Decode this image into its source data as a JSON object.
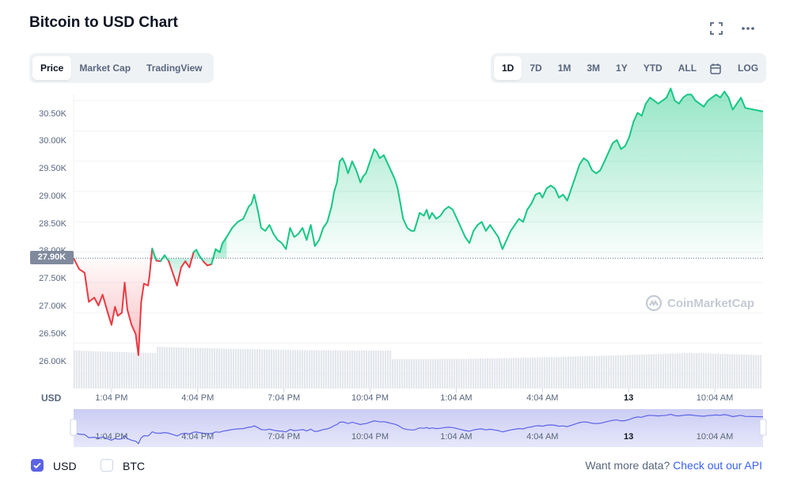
{
  "header": {
    "title": "Bitcoin to USD Chart"
  },
  "icons": {
    "fullscreen": "fullscreen-icon",
    "more": "more-icon",
    "calendar": "calendar-icon",
    "logo": "coinmarketcap-logo"
  },
  "chart_tabs": [
    {
      "label": "Price",
      "active": true
    },
    {
      "label": "Market Cap",
      "active": false
    },
    {
      "label": "TradingView",
      "active": false
    }
  ],
  "ranges": [
    {
      "label": "1D",
      "active": true
    },
    {
      "label": "7D",
      "active": false
    },
    {
      "label": "1M",
      "active": false
    },
    {
      "label": "3M",
      "active": false
    },
    {
      "label": "1Y",
      "active": false
    },
    {
      "label": "YTD",
      "active": false
    },
    {
      "label": "ALL",
      "active": false
    }
  ],
  "log_label": "LOG",
  "watermark": "CoinMarketCap",
  "footer": {
    "usd_label": "USD",
    "btc_label": "BTC",
    "usd_checked": true,
    "btc_checked": false,
    "more_text": "Want more data?",
    "api_link": "Check out our API"
  },
  "colors": {
    "up": "#16c784",
    "down": "#ea3943",
    "navigator": "#6a6fdc",
    "accent": "#3861fb"
  },
  "chart_data": {
    "type": "line",
    "currency_label": "USD",
    "reference_value_label": "27.90K",
    "reference_value": 27900,
    "ylim": [
      25750,
      30750
    ],
    "yticks": [
      "26.00K",
      "26.50K",
      "27.00K",
      "27.50K",
      "28.00K",
      "28.50K",
      "29.00K",
      "29.50K",
      "30.00K",
      "30.50K"
    ],
    "ytick_values": [
      26000,
      26500,
      27000,
      27500,
      28000,
      28500,
      29000,
      29500,
      30000,
      30500
    ],
    "xticks": [
      {
        "label": "1:04 PM",
        "t": 0.055,
        "bold": false
      },
      {
        "label": "4:04 PM",
        "t": 0.18,
        "bold": false
      },
      {
        "label": "7:04 PM",
        "t": 0.305,
        "bold": false
      },
      {
        "label": "10:04 PM",
        "t": 0.43,
        "bold": false
      },
      {
        "label": "1:04 AM",
        "t": 0.555,
        "bold": false
      },
      {
        "label": "4:04 AM",
        "t": 0.68,
        "bold": false
      },
      {
        "label": "13",
        "t": 0.805,
        "bold": true
      },
      {
        "label": "10:04 AM",
        "t": 0.93,
        "bold": false
      }
    ],
    "series": [
      {
        "x": [
          0.0,
          0.008,
          0.016,
          0.022,
          0.03,
          0.036,
          0.042,
          0.05,
          0.055,
          0.06,
          0.064,
          0.07,
          0.074,
          0.078,
          0.084,
          0.09,
          0.094,
          0.098,
          0.102,
          0.108,
          0.11
        ],
        "y": [
          27900,
          27720,
          27660,
          27180,
          27250,
          27120,
          27300,
          26980,
          26800,
          27100,
          26950,
          27000,
          27500,
          27050,
          26800,
          26650,
          26300,
          27180,
          27480,
          27450,
          27600
        ]
      },
      {
        "x": [
          0.11,
          0.114,
          0.12,
          0.126,
          0.132,
          0.138,
          0.144,
          0.15,
          0.156,
          0.162,
          0.168,
          0.174,
          0.178,
          0.182,
          0.188,
          0.194,
          0.2,
          0.206,
          0.212,
          0.216,
          0.222
        ],
        "y": [
          27600,
          28060,
          27860,
          27850,
          27950,
          27850,
          27650,
          27450,
          27750,
          27850,
          27750,
          28000,
          28040,
          27950,
          27850,
          27780,
          27800,
          28050,
          28000,
          28150,
          28250
        ]
      },
      {
        "x": [
          0.222,
          0.23,
          0.238,
          0.246,
          0.254,
          0.258,
          0.262,
          0.268,
          0.272,
          0.278,
          0.284,
          0.29,
          0.296,
          0.302,
          0.308,
          0.314,
          0.32,
          0.326,
          0.332,
          0.338,
          0.344,
          0.35,
          0.356,
          0.362,
          0.368,
          0.374,
          0.378,
          0.382,
          0.386,
          0.39,
          0.394,
          0.398,
          0.404,
          0.41,
          0.416,
          0.42,
          0.424,
          0.43,
          0.436,
          0.44,
          0.444,
          0.45,
          0.456,
          0.46,
          0.466,
          0.47,
          0.474,
          0.478,
          0.484,
          0.49,
          0.494,
          0.498,
          0.502,
          0.508,
          0.512,
          0.516,
          0.52,
          0.526,
          0.532,
          0.538,
          0.544,
          0.55,
          0.556,
          0.562,
          0.568,
          0.574,
          0.58,
          0.586,
          0.592,
          0.598,
          0.604,
          0.61,
          0.616,
          0.622,
          0.628,
          0.634,
          0.64,
          0.646,
          0.652,
          0.658,
          0.664,
          0.67,
          0.676,
          0.68,
          0.686,
          0.692,
          0.698,
          0.704,
          0.71,
          0.716,
          0.722,
          0.728,
          0.734,
          0.74,
          0.746,
          0.752,
          0.758,
          0.764,
          0.77,
          0.776,
          0.782,
          0.788,
          0.794,
          0.8,
          0.806,
          0.812,
          0.818,
          0.824,
          0.83,
          0.836,
          0.842,
          0.848,
          0.854,
          0.86,
          0.866,
          0.872,
          0.878,
          0.884,
          0.89,
          0.896,
          0.902,
          0.908,
          0.914,
          0.92,
          0.926,
          0.932,
          0.938,
          0.944,
          0.95,
          0.956,
          0.962,
          0.968,
          0.974,
          1.0
        ],
        "y": [
          28250,
          28400,
          28500,
          28550,
          28750,
          28800,
          28950,
          28650,
          28400,
          28350,
          28450,
          28300,
          28200,
          28150,
          28050,
          28400,
          28250,
          28300,
          28400,
          28200,
          28450,
          28100,
          28200,
          28400,
          28500,
          28750,
          29000,
          29150,
          29500,
          29550,
          29450,
          29300,
          29500,
          29350,
          29150,
          29250,
          29300,
          29500,
          29700,
          29650,
          29550,
          29600,
          29450,
          29350,
          29200,
          29050,
          28800,
          28550,
          28400,
          28350,
          28350,
          28500,
          28650,
          28600,
          28700,
          28550,
          28650,
          28550,
          28600,
          28700,
          28750,
          28700,
          28550,
          28400,
          28250,
          28150,
          28350,
          28450,
          28500,
          28350,
          28450,
          28350,
          28250,
          28050,
          28200,
          28350,
          28450,
          28550,
          28500,
          28700,
          28800,
          28950,
          28980,
          28900,
          29050,
          29100,
          29050,
          28900,
          28950,
          28850,
          29050,
          29250,
          29450,
          29550,
          29500,
          29350,
          29300,
          29350,
          29500,
          29650,
          29800,
          29850,
          29700,
          29750,
          29900,
          30150,
          30300,
          30250,
          30450,
          30550,
          30500,
          30450,
          30500,
          30550,
          30700,
          30500,
          30450,
          30550,
          30600,
          30600,
          30500,
          30450,
          30400,
          30500,
          30550,
          30600,
          30550,
          30650,
          30550,
          30350,
          30450,
          30550,
          30380,
          30320
        ]
      }
    ],
    "volume_note": "gray volume bars at bottom"
  }
}
